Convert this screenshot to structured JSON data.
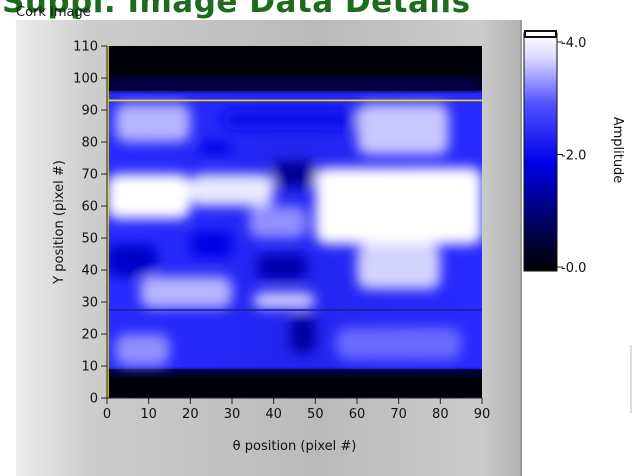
{
  "page": {
    "heading_fragment": "Suppl. Image Data Details",
    "panel_title": "Cork Image"
  },
  "colors": {
    "panel_bg": "#c4c4c4",
    "colormap": [
      "#000000",
      "#000060",
      "#0000e0",
      "#3c3cff",
      "#ffffff"
    ],
    "cursor": "#e8e000",
    "heading": "#1e6b1e"
  },
  "chart_data": {
    "type": "heatmap",
    "title": "Cork Image",
    "xlabel": "θ position (pixel #)",
    "ylabel": "Y position (pixel #)",
    "xlim": [
      0,
      90
    ],
    "ylim": [
      0,
      110
    ],
    "xticks": [
      0,
      10,
      20,
      30,
      40,
      50,
      60,
      70,
      80,
      90
    ],
    "yticks": [
      0,
      10,
      20,
      30,
      40,
      50,
      60,
      70,
      80,
      90,
      100,
      110
    ],
    "colorbar": {
      "label": "Amplitude",
      "range": [
        0.0,
        4.0
      ],
      "ticks": [
        "-4.0",
        "-2.0",
        "-0.0"
      ],
      "tick_values": [
        4.0,
        2.0,
        0.0
      ]
    },
    "cursor": {
      "x": 0,
      "y": 93
    },
    "data_extent_y": [
      9,
      96
    ],
    "bright_regions": [
      {
        "x": [
          0,
          20
        ],
        "y": [
          56,
          70
        ],
        "amplitude": 4.0
      },
      {
        "x": [
          20,
          40
        ],
        "y": [
          60,
          70
        ],
        "amplitude": 3.8
      },
      {
        "x": [
          50,
          90
        ],
        "y": [
          48,
          72
        ],
        "amplitude": 4.0
      },
      {
        "x": [
          60,
          80
        ],
        "y": [
          34,
          48
        ],
        "amplitude": 3.6
      },
      {
        "x": [
          8,
          30
        ],
        "y": [
          28,
          38
        ],
        "amplitude": 3.4
      },
      {
        "x": [
          35,
          50
        ],
        "y": [
          28,
          33
        ],
        "amplitude": 3.6
      },
      {
        "x": [
          60,
          82
        ],
        "y": [
          76,
          92
        ],
        "amplitude": 3.5
      },
      {
        "x": [
          2,
          20
        ],
        "y": [
          80,
          92
        ],
        "amplitude": 3.4
      },
      {
        "x": [
          34,
          48
        ],
        "y": [
          50,
          60
        ],
        "amplitude": 3.2
      },
      {
        "x": [
          2,
          15
        ],
        "y": [
          10,
          20
        ],
        "amplitude": 3.2
      },
      {
        "x": [
          55,
          85
        ],
        "y": [
          12,
          22
        ],
        "amplitude": 3.0
      }
    ],
    "dark_regions": [
      {
        "x": [
          40,
          50
        ],
        "y": [
          66,
          74
        ],
        "amplitude": 1.2
      },
      {
        "x": [
          36,
          48
        ],
        "y": [
          37,
          45
        ],
        "amplitude": 1.4
      },
      {
        "x": [
          44,
          50
        ],
        "y": [
          14,
          26
        ],
        "amplitude": 1.3
      },
      {
        "x": [
          0,
          12
        ],
        "y": [
          38,
          48
        ],
        "amplitude": 1.6
      },
      {
        "x": [
          22,
          30
        ],
        "y": [
          76,
          80
        ],
        "amplitude": 1.8
      },
      {
        "x": [
          28,
          60
        ],
        "y": [
          84,
          90
        ],
        "amplitude": 2.0
      },
      {
        "x": [
          20,
          30
        ],
        "y": [
          44,
          52
        ],
        "amplitude": 1.8
      }
    ]
  }
}
